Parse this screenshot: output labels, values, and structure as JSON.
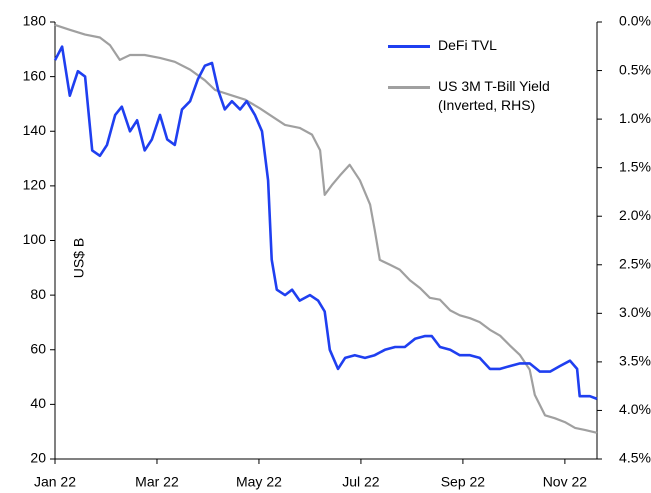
{
  "chart_data": {
    "type": "line",
    "y_label": "US$ B",
    "xlim": [
      0,
      10.63
    ],
    "xticks": [
      {
        "value": 0,
        "label": "Jan 22"
      },
      {
        "value": 2,
        "label": "Mar 22"
      },
      {
        "value": 4,
        "label": "May 22"
      },
      {
        "value": 6,
        "label": "Jul 22"
      },
      {
        "value": 8,
        "label": "Sep 22"
      },
      {
        "value": 10,
        "label": "Nov 22"
      }
    ],
    "ylim": [
      20,
      180
    ],
    "yticks": [
      20,
      40,
      60,
      80,
      100,
      120,
      140,
      160,
      180
    ],
    "y2lim": [
      4.5,
      0
    ],
    "y2ticks": [
      {
        "value": 0,
        "label": "0.0%"
      },
      {
        "value": 0.5,
        "label": "0.5%"
      },
      {
        "value": 1,
        "label": "1.0%"
      },
      {
        "value": 1.5,
        "label": "1.5%"
      },
      {
        "value": 2,
        "label": "2.0%"
      },
      {
        "value": 2.5,
        "label": "2.5%"
      },
      {
        "value": 3,
        "label": "3.0%"
      },
      {
        "value": 3.5,
        "label": "3.5%"
      },
      {
        "value": 4,
        "label": "4.0%"
      },
      {
        "value": 4.5,
        "label": "4.5%"
      }
    ],
    "series": [
      {
        "name": "DeFi TVL",
        "color": "#1f3ff0",
        "axis": "y",
        "x": [
          0,
          0.14,
          0.29,
          0.45,
          0.59,
          0.73,
          0.88,
          1.02,
          1.18,
          1.31,
          1.47,
          1.61,
          1.76,
          1.9,
          2.06,
          2.2,
          2.35,
          2.49,
          2.65,
          2.8,
          2.94,
          3.08,
          3.2,
          3.33,
          3.47,
          3.63,
          3.76,
          3.92,
          4.06,
          4.18,
          4.25,
          4.35,
          4.51,
          4.65,
          4.8,
          5,
          5.16,
          5.29,
          5.39,
          5.55,
          5.69,
          5.88,
          6.08,
          6.27,
          6.47,
          6.67,
          6.86,
          7.06,
          7.25,
          7.39,
          7.55,
          7.75,
          7.94,
          8.14,
          8.33,
          8.53,
          8.73,
          8.92,
          9.12,
          9.31,
          9.51,
          9.71,
          9.9,
          10.1,
          10.24,
          10.29,
          10.49,
          10.63
        ],
        "values": [
          166,
          171,
          153,
          162,
          160,
          133,
          131,
          135,
          146,
          149,
          140,
          144,
          133,
          137,
          146,
          137,
          135,
          148,
          151,
          159,
          164,
          165,
          155,
          148,
          151,
          148,
          151,
          146,
          140,
          122,
          93,
          82,
          80,
          82,
          78,
          80,
          78,
          74,
          60,
          53,
          57,
          58,
          57,
          58,
          60,
          61,
          61,
          64,
          65,
          65,
          61,
          60,
          58,
          58,
          57,
          53,
          53,
          54,
          55,
          55,
          52,
          52,
          54,
          56,
          53,
          43,
          43,
          42
        ]
      },
      {
        "name": "US 3M T-Bill Yield (Inverted, RHS)",
        "color": "#a0a0a0",
        "axis": "y2",
        "x": [
          0,
          0.29,
          0.59,
          0.88,
          1.08,
          1.27,
          1.47,
          1.76,
          2.06,
          2.35,
          2.65,
          2.94,
          3.14,
          3.43,
          3.73,
          4.02,
          4.22,
          4.51,
          4.8,
          5.04,
          5.2,
          5.29,
          5.43,
          5.59,
          5.78,
          5.98,
          6.18,
          6.27,
          6.37,
          6.57,
          6.76,
          6.96,
          7.16,
          7.35,
          7.55,
          7.75,
          7.94,
          8.14,
          8.33,
          8.53,
          8.73,
          8.92,
          9.12,
          9.31,
          9.41,
          9.61,
          9.8,
          10,
          10.2,
          10.39,
          10.63
        ],
        "values": [
          0.03,
          0.08,
          0.13,
          0.16,
          0.24,
          0.39,
          0.34,
          0.34,
          0.37,
          0.41,
          0.49,
          0.6,
          0.7,
          0.75,
          0.8,
          0.89,
          0.96,
          1.06,
          1.09,
          1.16,
          1.32,
          1.78,
          1.68,
          1.58,
          1.47,
          1.63,
          1.88,
          2.14,
          2.45,
          2.5,
          2.55,
          2.66,
          2.74,
          2.84,
          2.86,
          2.97,
          3.02,
          3.05,
          3.09,
          3.17,
          3.23,
          3.33,
          3.43,
          3.58,
          3.84,
          4.05,
          4.08,
          4.12,
          4.18,
          4.2,
          4.23
        ]
      }
    ]
  }
}
